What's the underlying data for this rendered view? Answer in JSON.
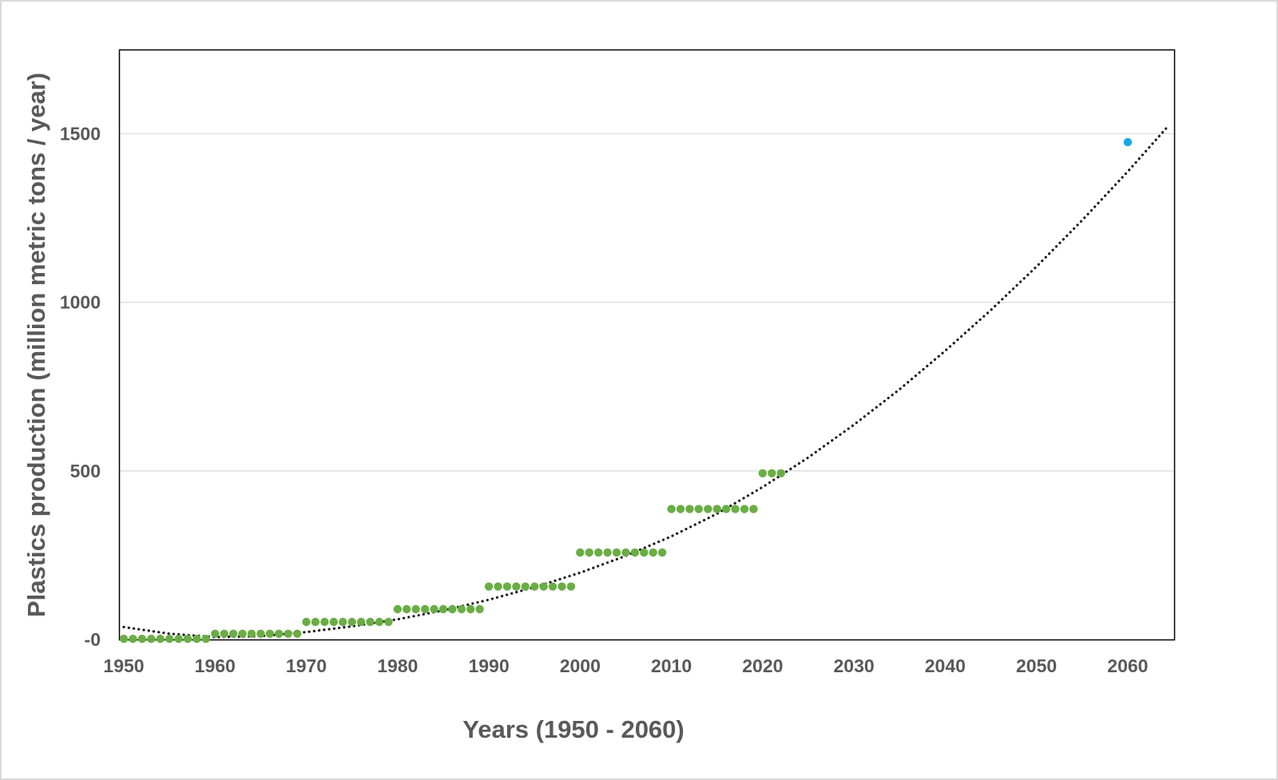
{
  "chart_data": {
    "type": "scatter",
    "title": "",
    "xlabel": "Years (1950 - 2060)",
    "ylabel": "Plastics production (million metric tons / year)",
    "xlim": [
      1950,
      2065
    ],
    "ylim": [
      0,
      1750
    ],
    "x_ticks": [
      1950,
      1960,
      1970,
      1980,
      1990,
      2000,
      2010,
      2020,
      2030,
      2040,
      2050,
      2060
    ],
    "x_tick_labels": [
      "1950",
      "1960",
      "1970",
      "1980",
      "1990",
      "2000",
      "2010",
      "2020",
      "2030",
      "2040",
      "2050",
      "2060"
    ],
    "y_ticks": [
      0,
      500,
      1000,
      1500
    ],
    "y_tick_labels": [
      "-0",
      "500",
      "1000",
      "1500"
    ],
    "grid": "horizontal",
    "legend": "none",
    "colors": {
      "observed": "#6aad45",
      "projected": "#18a8e8",
      "trendline": "#1a1a1a",
      "gridline": "#d9d9d9",
      "axis_text": "#595959",
      "plot_border": "#000000"
    },
    "series": [
      {
        "kind": "observed",
        "color": "#6aad45",
        "points": [
          [
            1950,
            2
          ],
          [
            1951,
            2
          ],
          [
            1952,
            2
          ],
          [
            1953,
            2
          ],
          [
            1954,
            2
          ],
          [
            1955,
            2
          ],
          [
            1956,
            2
          ],
          [
            1957,
            2
          ],
          [
            1958,
            2
          ],
          [
            1959,
            2
          ],
          [
            1960,
            17
          ],
          [
            1961,
            17
          ],
          [
            1962,
            17
          ],
          [
            1963,
            17
          ],
          [
            1964,
            17
          ],
          [
            1965,
            17
          ],
          [
            1966,
            17
          ],
          [
            1967,
            17
          ],
          [
            1968,
            17
          ],
          [
            1969,
            17
          ],
          [
            1970,
            52
          ],
          [
            1971,
            52
          ],
          [
            1972,
            52
          ],
          [
            1973,
            52
          ],
          [
            1974,
            52
          ],
          [
            1975,
            52
          ],
          [
            1976,
            52
          ],
          [
            1977,
            52
          ],
          [
            1978,
            52
          ],
          [
            1979,
            52
          ],
          [
            1980,
            90
          ],
          [
            1981,
            90
          ],
          [
            1982,
            90
          ],
          [
            1983,
            90
          ],
          [
            1984,
            90
          ],
          [
            1985,
            90
          ],
          [
            1986,
            90
          ],
          [
            1987,
            90
          ],
          [
            1988,
            90
          ],
          [
            1989,
            90
          ],
          [
            1990,
            157
          ],
          [
            1991,
            157
          ],
          [
            1992,
            157
          ],
          [
            1993,
            157
          ],
          [
            1994,
            157
          ],
          [
            1995,
            157
          ],
          [
            1996,
            157
          ],
          [
            1997,
            157
          ],
          [
            1998,
            157
          ],
          [
            1999,
            157
          ],
          [
            2000,
            258
          ],
          [
            2001,
            258
          ],
          [
            2002,
            258
          ],
          [
            2003,
            258
          ],
          [
            2004,
            258
          ],
          [
            2005,
            258
          ],
          [
            2006,
            258
          ],
          [
            2007,
            258
          ],
          [
            2008,
            258
          ],
          [
            2009,
            258
          ],
          [
            2010,
            387
          ],
          [
            2011,
            387
          ],
          [
            2012,
            387
          ],
          [
            2013,
            387
          ],
          [
            2014,
            387
          ],
          [
            2015,
            387
          ],
          [
            2016,
            387
          ],
          [
            2017,
            387
          ],
          [
            2018,
            387
          ],
          [
            2019,
            387
          ],
          [
            2020,
            493
          ],
          [
            2021,
            493
          ],
          [
            2022,
            493
          ]
        ]
      },
      {
        "kind": "projected",
        "color": "#18a8e8",
        "points": [
          [
            2060,
            1475
          ]
        ]
      }
    ],
    "trendline": {
      "type": "polynomial",
      "style": "dotted",
      "x_range": [
        1950,
        2064.5
      ],
      "points": [
        [
          1950,
          37
        ],
        [
          1955,
          17
        ],
        [
          1960,
          7
        ],
        [
          1965,
          10
        ],
        [
          1970,
          22
        ],
        [
          1975,
          39
        ],
        [
          1980,
          60
        ],
        [
          1985,
          86
        ],
        [
          1990,
          118
        ],
        [
          1995,
          155
        ],
        [
          2000,
          198
        ],
        [
          2005,
          248
        ],
        [
          2010,
          306
        ],
        [
          2015,
          373
        ],
        [
          2020,
          452
        ],
        [
          2025,
          540
        ],
        [
          2030,
          637
        ],
        [
          2035,
          742
        ],
        [
          2040,
          856
        ],
        [
          2045,
          977
        ],
        [
          2050,
          1106
        ],
        [
          2055,
          1243
        ],
        [
          2060,
          1388
        ],
        [
          2064.5,
          1525
        ]
      ]
    }
  }
}
